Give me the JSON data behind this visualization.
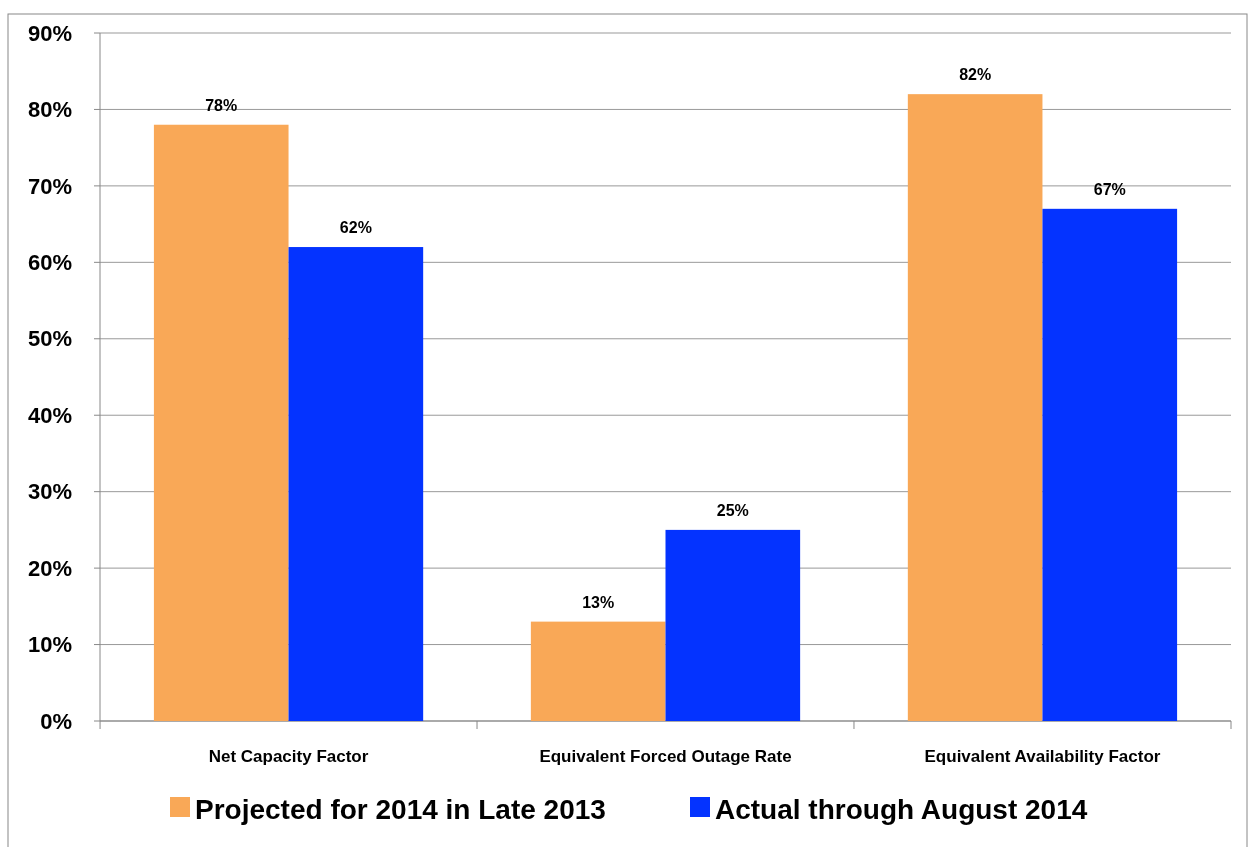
{
  "chart_data": {
    "type": "bar",
    "categories": [
      "Net Capacity Factor",
      "Equivalent Forced Outage Rate",
      "Equivalent Availability Factor"
    ],
    "series": [
      {
        "name": "Projected for 2014 in Late 2013",
        "color": "#f9a857",
        "values": [
          78,
          13,
          82
        ],
        "value_labels": [
          "78%",
          "13%",
          "82%"
        ]
      },
      {
        "name": "Actual through August 2014",
        "color": "#0433ff",
        "values": [
          62,
          25,
          67
        ],
        "value_labels": [
          "62%",
          "25%",
          "67%"
        ]
      }
    ],
    "ylim": [
      0,
      90
    ],
    "yticks": [
      {
        "value": 0,
        "label": "0%"
      },
      {
        "value": 10,
        "label": "10%"
      },
      {
        "value": 20,
        "label": "20%"
      },
      {
        "value": 30,
        "label": "30%"
      },
      {
        "value": 40,
        "label": "40%"
      },
      {
        "value": 50,
        "label": "50%"
      },
      {
        "value": 60,
        "label": "60%"
      },
      {
        "value": 70,
        "label": "70%"
      },
      {
        "value": 80,
        "label": "80%"
      },
      {
        "value": 90,
        "label": "90%"
      }
    ],
    "grid": "y",
    "legend": "bottom"
  }
}
